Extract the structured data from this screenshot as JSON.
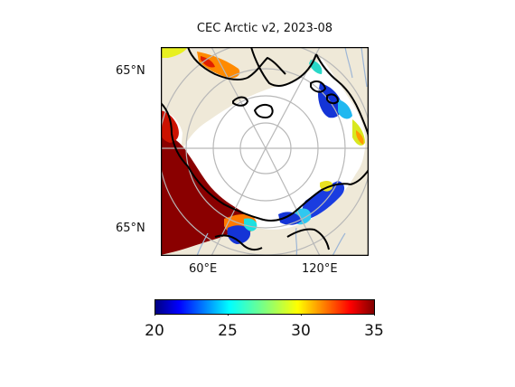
{
  "title": "CEC Arctic v2, 2023-08",
  "lat_labels": [
    "65°N",
    "65°N"
  ],
  "lon_labels": [
    "60°E",
    "120°E"
  ],
  "colorbar": {
    "min": 20,
    "max": 35,
    "ticks": [
      "20",
      "25",
      "30",
      "35"
    ],
    "colormap": "jet"
  },
  "colors": {
    "land": "#efe9d8",
    "ocean": "#ffffff",
    "coastline": "#000000",
    "rivers": "#9db6d6",
    "gridlines": "#b8b8b8"
  }
}
